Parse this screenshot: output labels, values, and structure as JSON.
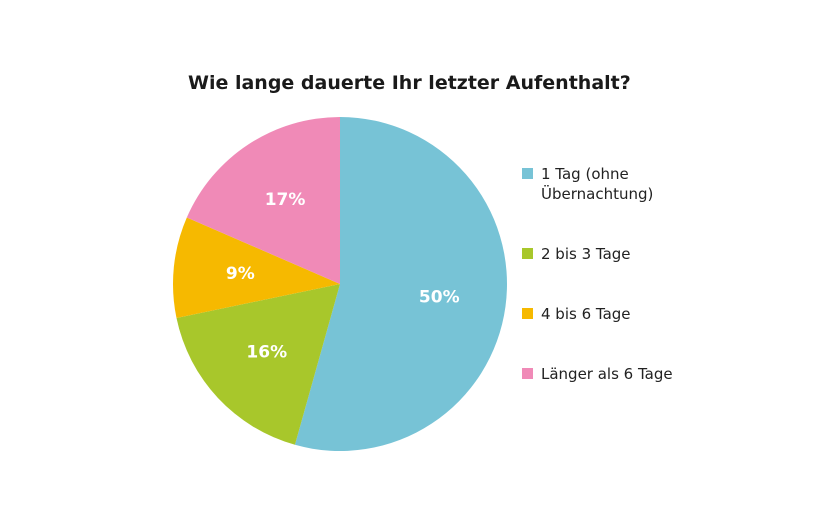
{
  "chart_data": {
    "type": "pie",
    "title": "Wie lange dauerte Ihr letzter Aufenthalt?",
    "slices": [
      {
        "name": "1 Tag (ohne Übernachtung)",
        "value": 50,
        "label": "50%",
        "color": "#77c3d6"
      },
      {
        "name": "2 bis 3 Tage",
        "value": 16,
        "label": "16%",
        "color": "#a8c72b"
      },
      {
        "name": "4 bis 6 Tage",
        "value": 9,
        "label": "9%",
        "color": "#f6b900"
      },
      {
        "name": "Länger als 6 Tage",
        "value": 17,
        "label": "17%",
        "color": "#f08ab7"
      }
    ],
    "legend_position": "right"
  }
}
